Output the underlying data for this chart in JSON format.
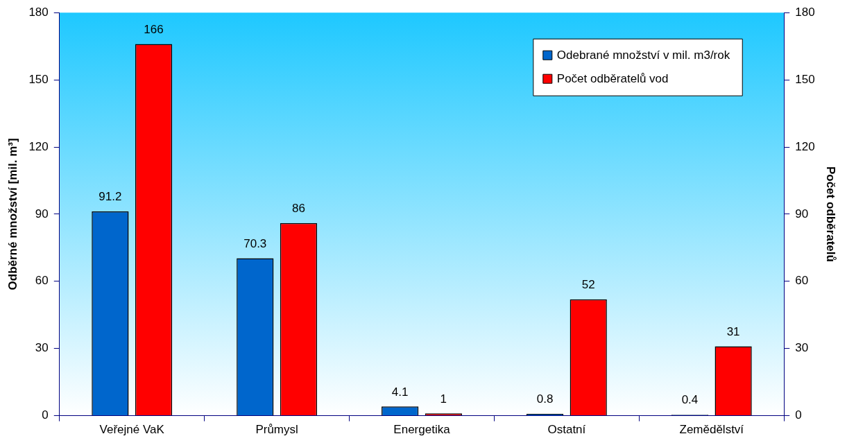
{
  "chart_data": {
    "type": "bar",
    "ylabel": "Odběrné množství [mil. m³]",
    "y2label": "Počet odběratelů",
    "categories": [
      "Veřejné VaK",
      "Průmysl",
      "Energetika",
      "Ostatní",
      "Zemědělství"
    ],
    "series": [
      {
        "name": "Odebrané množství v mil. m3/rok",
        "color": "#0066cc",
        "values": [
          91.2,
          70.3,
          4.1,
          0.8,
          0.4
        ]
      },
      {
        "name": "Počet odběratelů vod",
        "color": "#ff0000",
        "values": [
          166,
          86,
          1,
          52,
          31
        ],
        "axis": "y2"
      }
    ],
    "ylim": [
      0,
      180
    ],
    "yticks": [
      0,
      30,
      60,
      90,
      120,
      150,
      180
    ],
    "y2lim": [
      0,
      180
    ],
    "y2ticks": [
      0,
      30,
      60,
      90,
      120,
      150,
      180
    ],
    "data_labels": true,
    "grid": false,
    "legend": "top right"
  }
}
